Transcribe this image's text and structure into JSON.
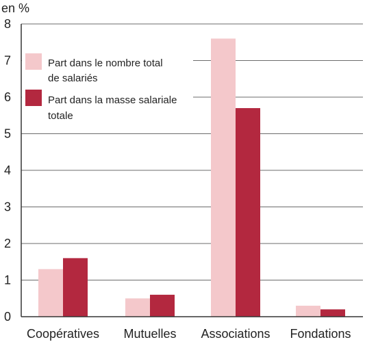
{
  "chart_data": {
    "type": "bar",
    "unit_label": "en %",
    "categories": [
      "Coopératives",
      "Mutuelles",
      "Associations",
      "Fondations"
    ],
    "series": [
      {
        "name": "Part dans le nombre total de salariés",
        "name_lines": [
          "Part dans le nombre total",
          "de salariés"
        ],
        "values": [
          1.3,
          0.5,
          7.6,
          0.3
        ],
        "color": "#f4c8cb"
      },
      {
        "name": "Part dans la masse salariale totale",
        "name_lines": [
          "Part dans la masse salariale",
          "totale"
        ],
        "values": [
          1.6,
          0.6,
          5.7,
          0.2
        ],
        "color": "#b3283f"
      }
    ],
    "ylim": [
      0,
      8
    ],
    "yticks": [
      "0",
      "1",
      "2",
      "3",
      "4",
      "5",
      "6",
      "7",
      "8"
    ],
    "grid": true,
    "legend_position": "top-left"
  }
}
